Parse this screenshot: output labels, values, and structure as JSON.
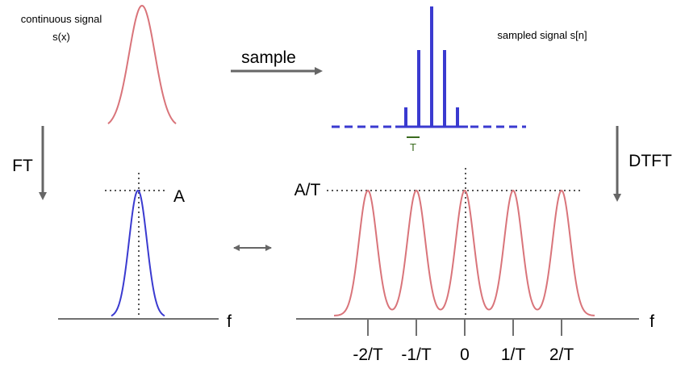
{
  "labels": {
    "continuous_line1": "continuous signal",
    "continuous_line2": "s(x)",
    "sample": "sample",
    "sampled": "sampled signal s[n]",
    "T": "T",
    "FT": "FT",
    "DTFT": "DTFT",
    "A": "A",
    "A_over_T": "A/T",
    "f_left": "f",
    "f_right": "f"
  },
  "ticks": [
    "-2/T",
    "-1/T",
    "0",
    "1/T",
    "2/T"
  ],
  "colors": {
    "gaussian_red": "#d9747a",
    "gaussian_blue": "#3a3ad0",
    "arrow_gray": "#666666",
    "axis_gray": "#707070",
    "T_bar_green": "#3a6b1e"
  },
  "icons": {
    "arrow_sample": "arrow-right-icon",
    "arrow_ft": "arrow-down-icon",
    "arrow_dtft": "arrow-down-icon",
    "arrow_equiv": "double-arrow-icon"
  }
}
